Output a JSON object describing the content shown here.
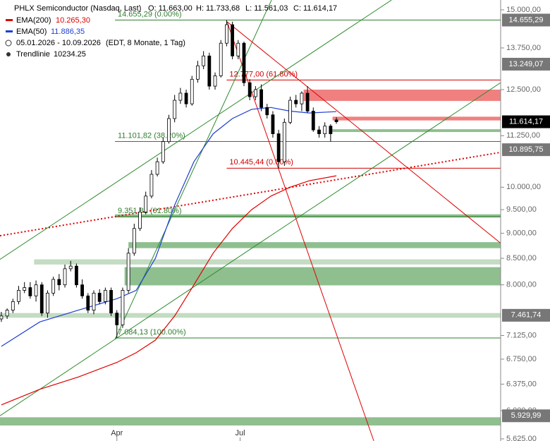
{
  "chart_data": {
    "type": "candlestick",
    "header": {
      "title": "PHLX Semiconductor (Nasdaq, Last)",
      "open": "O: 11.663,00",
      "high": "H: 11.733,68",
      "low": "L: 11.561,03",
      "close": "C: 11.614,17",
      "range": "05.01.2026 - 10.09.2026",
      "info": "(EDT, 8 Monate, 1 Tag)",
      "trend_name": "Trendlinie",
      "trend_value": "10234.25"
    },
    "log_scale": true,
    "xlim": [
      -0.7,
      259.3
    ],
    "xticks": [
      {
        "value": 60,
        "label": "Apr"
      },
      {
        "value": 124,
        "label": "Jul"
      }
    ],
    "ylim": [
      5625,
      15000
    ],
    "yticks": [
      {
        "value": 15000,
        "label": "15.000,00"
      },
      {
        "value": 13750,
        "label": "13.750,00"
      },
      {
        "value": 12500,
        "label": "12.500,00"
      },
      {
        "value": 11250,
        "label": "11.250,00"
      },
      {
        "value": 10000,
        "label": "10.000,00"
      },
      {
        "value": 9500,
        "label": "9.500,00"
      },
      {
        "value": 9000,
        "label": "9.000,00"
      },
      {
        "value": 8500,
        "label": "8.500,00"
      },
      {
        "value": 8000,
        "label": "8.000,00"
      },
      {
        "value": 7125,
        "label": "7.125,00"
      },
      {
        "value": 6750,
        "label": "6.750,00"
      },
      {
        "value": 6375,
        "label": "6.375,00"
      },
      {
        "value": 6000,
        "label": "6.000,00"
      },
      {
        "value": 5625,
        "label": "5.625,00"
      }
    ],
    "candles": {
      "up_color": "#ffffff",
      "down_color": "#000000",
      "x": [
        0,
        3,
        6,
        9,
        12,
        15,
        18,
        21,
        24,
        27,
        30,
        33,
        36,
        39,
        42,
        45,
        48,
        51,
        54,
        57,
        60,
        63,
        66,
        69,
        72,
        75,
        78,
        81,
        84,
        87,
        90,
        93,
        96,
        99,
        102,
        105,
        108,
        111,
        114,
        117,
        120,
        123,
        126,
        129,
        132,
        135,
        138,
        141,
        144,
        147,
        150,
        153,
        156,
        159,
        162,
        165,
        168,
        171,
        174
      ],
      "open": [
        7400,
        7450,
        7550,
        7700,
        7900,
        7950,
        7800,
        8000,
        7500,
        7850,
        8100,
        8000,
        8300,
        8350,
        8000,
        7800,
        7550,
        7850,
        7700,
        7900,
        7500,
        7300,
        7900,
        8600,
        9100,
        9450,
        9800,
        10300,
        10600,
        11100,
        11700,
        12200,
        12400,
        12100,
        12800,
        13200,
        13500,
        12600,
        12900,
        13900,
        14500,
        13500,
        13900,
        12700,
        12300,
        12500,
        12000,
        11800,
        11300,
        10600,
        11600,
        12200,
        12100,
        12400,
        11900,
        11400,
        11300,
        11500,
        11663
      ],
      "high": [
        7520,
        7580,
        7750,
        7980,
        8050,
        8050,
        8080,
        8050,
        7900,
        8150,
        8200,
        8380,
        8450,
        8400,
        8100,
        7850,
        7900,
        7920,
        7950,
        7950,
        7550,
        7950,
        8700,
        9200,
        9550,
        9900,
        10400,
        10700,
        11200,
        11800,
        12350,
        12550,
        12500,
        12900,
        13350,
        13650,
        13600,
        13000,
        14000,
        14655.29,
        14600,
        14000,
        13950,
        12800,
        12600,
        12650,
        12100,
        11900,
        11400,
        11700,
        12300,
        12350,
        12450,
        12600,
        12000,
        11500,
        11600,
        11550,
        11733.68
      ],
      "low": [
        7350,
        7400,
        7500,
        7650,
        7850,
        7750,
        7700,
        7450,
        7420,
        7800,
        7900,
        7950,
        8250,
        7950,
        7750,
        7500,
        7480,
        7650,
        7650,
        7450,
        7084.13,
        7250,
        7850,
        8550,
        9050,
        9400,
        9750,
        10250,
        10550,
        11050,
        11600,
        12100,
        12000,
        12050,
        12700,
        13100,
        12500,
        12500,
        12850,
        13800,
        13400,
        13400,
        12600,
        12200,
        12200,
        11900,
        11700,
        11200,
        10445.44,
        10500,
        11550,
        12000,
        11900,
        11850,
        11350,
        11200,
        11200,
        11100,
        11561.03
      ],
      "close": [
        7450,
        7550,
        7700,
        7900,
        7950,
        7800,
        8000,
        7500,
        7850,
        8100,
        8000,
        8300,
        8350,
        8000,
        7800,
        7550,
        7850,
        7700,
        7900,
        7500,
        7300,
        7900,
        8600,
        9100,
        9450,
        9800,
        10300,
        10600,
        11100,
        11700,
        12200,
        12400,
        12100,
        12800,
        13200,
        13500,
        12600,
        12900,
        13900,
        14500,
        13500,
        13900,
        12700,
        12300,
        12500,
        12000,
        11800,
        11300,
        10600,
        11600,
        12200,
        12100,
        12400,
        11900,
        11400,
        11300,
        11500,
        11300,
        11614.17
      ]
    },
    "series": [
      {
        "name": "EMA(200)",
        "value_label": "10.265,30",
        "color": "#e00000",
        "x": [
          0,
          20,
          40,
          60,
          70,
          80,
          90,
          100,
          110,
          120,
          130,
          140,
          150,
          160,
          174
        ],
        "values": [
          6080,
          6300,
          6480,
          6700,
          6850,
          7050,
          7450,
          8000,
          8600,
          9100,
          9500,
          9800,
          10000,
          10150,
          10265.3
        ]
      },
      {
        "name": "EMA(50)",
        "value_label": "11.886,35",
        "color": "#1f3fd0",
        "x": [
          0,
          20,
          40,
          60,
          70,
          80,
          90,
          100,
          110,
          120,
          130,
          140,
          150,
          160,
          174
        ],
        "values": [
          6950,
          7350,
          7550,
          7750,
          7900,
          8500,
          9600,
          10600,
          11300,
          11700,
          11950,
          12000,
          11900,
          11850,
          11886.35
        ]
      }
    ],
    "zones": [
      {
        "from": 8380,
        "to": 8480,
        "start": 17,
        "color": "#c3dcc3"
      },
      {
        "from": 7990,
        "to": 8330,
        "start": 64,
        "color": "#8fbf8f"
      },
      {
        "from": 8700,
        "to": 8820,
        "start": 66,
        "color": "#8fbf8f"
      },
      {
        "from": 9330,
        "to": 9400,
        "start": 59,
        "color": "#8fbf8f"
      },
      {
        "from": 7420,
        "to": 7500,
        "start": -0.7,
        "color": "#c3dcc3"
      },
      {
        "from": 11345,
        "to": 11418,
        "start": 171,
        "color": "#8fbf8f"
      },
      {
        "from": 12180,
        "to": 12500,
        "start": 157,
        "color": "#f08080"
      },
      {
        "from": 11650,
        "to": 11750,
        "start": 172,
        "color": "#f08080"
      },
      {
        "from": 5800,
        "to": 5910,
        "start": -0.7,
        "color": "#8fbf8f"
      }
    ],
    "levels": [
      {
        "value": 14655.29,
        "label": "14.655,29 (0.00%)",
        "start": 59,
        "color": "#2e7d2e"
      },
      {
        "value": 12777,
        "label": "12.777,00 (61.80%)",
        "start": 117,
        "color": "#d00000"
      },
      {
        "value": 11101.82,
        "label": "11.101,82 (38.20%)",
        "start": 59,
        "color": "#2e7d2e"
      },
      {
        "value": 10445.44,
        "label": "10.445,44 (0.00%)",
        "start": 117,
        "color": "#d00000"
      },
      {
        "value": 9351.82,
        "label": "9.351,82 (61.80%)",
        "start": 59,
        "color": "#2e7d2e"
      },
      {
        "value": 7084.13,
        "label": "7.084,13 (100.00%)",
        "start": 59,
        "color": "#2e7d2e"
      }
    ],
    "trendlines": [
      {
        "x": [
          -0.7,
          259.3
        ],
        "values": [
          8950,
          10830
        ],
        "color": "#e00000",
        "dashed": true
      },
      {
        "x": [
          -0.7,
          202.6
        ],
        "values": [
          8480,
          15340
        ],
        "color": "#2e8b2e"
      },
      {
        "x": [
          -0.7,
          259.3
        ],
        "values": [
          5930,
          12700
        ],
        "color": "#2e8b2e"
      },
      {
        "x": [
          59,
          140.3
        ],
        "values": [
          7060,
          15340
        ],
        "color": "#2e8b2e"
      },
      {
        "x": [
          117.2,
          259.3
        ],
        "values": [
          14600,
          8800
        ],
        "color": "#e00000"
      },
      {
        "x": [
          117.2,
          193.4
        ],
        "values": [
          14600,
          5600
        ],
        "color": "#e00000"
      }
    ],
    "price_tags": [
      {
        "value": 14655.29,
        "label": "14.655,29",
        "color": "#777777"
      },
      {
        "value": 13249.07,
        "label": "13.249,07",
        "color": "#777777"
      },
      {
        "value": 11614.17,
        "label": "11.614,17",
        "color": "#000000"
      },
      {
        "value": 10895.75,
        "label": "10.895,75",
        "color": "#777777"
      },
      {
        "value": 7461.74,
        "label": "7.461,74",
        "color": "#777777"
      },
      {
        "value": 5929.99,
        "label": "5.929,99",
        "color": "#777777"
      }
    ]
  }
}
